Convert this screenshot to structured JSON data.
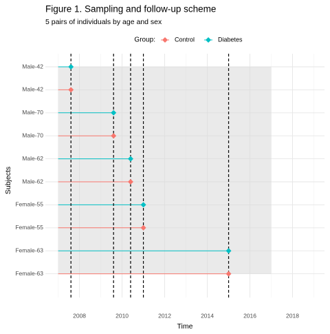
{
  "chart_data": {
    "type": "segment",
    "title": "Figure 1. Sampling and follow-up scheme",
    "subtitle": "5 pairs of individuals by age and sex",
    "x_label": "Time",
    "y_label": "Subjects",
    "legend_title": "Group:",
    "categories": [
      "Male-42",
      "Male-42",
      "Male-70",
      "Male-70",
      "Male-62",
      "Male-62",
      "Female-55",
      "Female-55",
      "Female-63",
      "Female-63"
    ],
    "series": [
      {
        "name": "Control",
        "color": "#F8766D",
        "start": [
          null,
          2007,
          null,
          2007,
          null,
          2007,
          null,
          2007,
          null,
          2007
        ],
        "values": [
          null,
          2007.6,
          null,
          2009.6,
          null,
          2010.4,
          null,
          2011.0,
          null,
          2015.0
        ]
      },
      {
        "name": "Diabetes",
        "color": "#00BFC4",
        "start": [
          2007,
          null,
          2007,
          null,
          2007,
          null,
          2007,
          null,
          2007,
          null
        ],
        "values": [
          2007.6,
          null,
          2009.6,
          null,
          2010.4,
          null,
          2011.0,
          null,
          2015.0,
          null
        ]
      }
    ],
    "shaded_range": [
      2007,
      2017
    ],
    "reference_lines": [
      2007.6,
      2009.6,
      2010.4,
      2011.0,
      2015.0
    ],
    "xlim": [
      2006.4,
      2019.5
    ],
    "xticks": [
      2008,
      2010,
      2012,
      2014,
      2016,
      2018
    ],
    "grid": true,
    "legend_position": "top"
  }
}
